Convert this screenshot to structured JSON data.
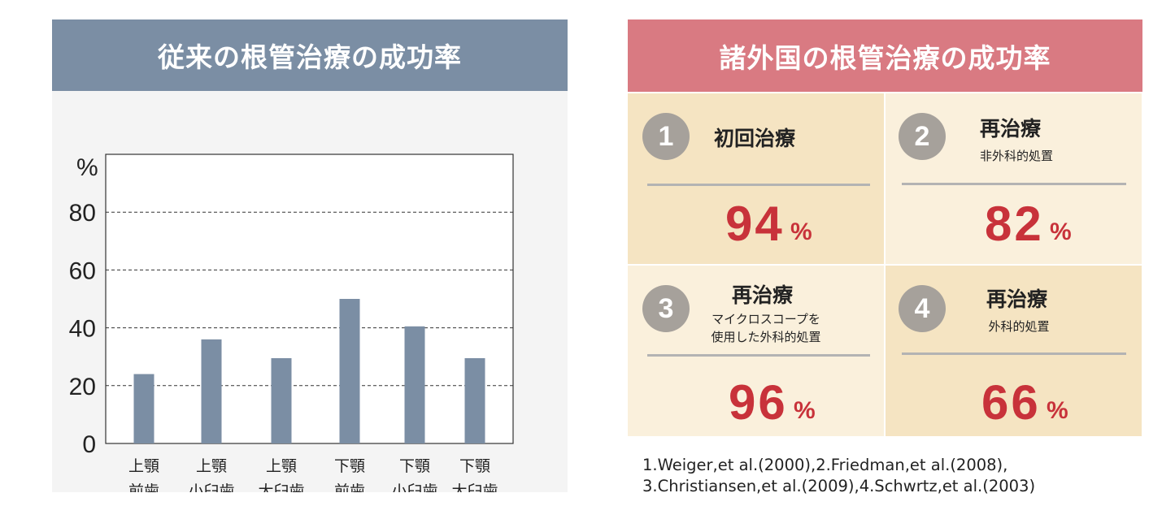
{
  "left": {
    "title": "従来の根管治療の成功率"
  },
  "chart_data": {
    "type": "bar",
    "y_unit_label": "%",
    "ylim": [
      0,
      100
    ],
    "y_ticks": [
      0,
      20,
      40,
      60,
      80
    ],
    "grid": "dashed horizontal at 20, 40, 60, 80",
    "categories": [
      [
        "上顎",
        "前歯"
      ],
      [
        "上顎",
        "小臼歯"
      ],
      [
        "上顎",
        "大臼歯"
      ],
      [
        "下顎",
        "前歯"
      ],
      [
        "下顎",
        "小臼歯"
      ],
      [
        "下顎",
        "大臼歯"
      ]
    ],
    "values": [
      24,
      36,
      29.5,
      50,
      40.5,
      29.5
    ],
    "bar_color": "#7b8ea4"
  },
  "right": {
    "title": "諸外国の根管治療の成功率",
    "cards": [
      {
        "num": "1",
        "title": "初回治療",
        "sub": [],
        "value": "94",
        "unit": "%",
        "bg": "#f5e4c2"
      },
      {
        "num": "2",
        "title": "再治療",
        "sub": [
          "非外科的処置"
        ],
        "value": "82",
        "unit": "%",
        "bg": "#faf0dc"
      },
      {
        "num": "3",
        "title": "再治療",
        "sub": [
          "マイクロスコープを",
          "使用した外科的処置"
        ],
        "value": "96",
        "unit": "%",
        "bg": "#faf0dc"
      },
      {
        "num": "4",
        "title": "再治療",
        "sub": [
          "外科的処置"
        ],
        "value": "66",
        "unit": "%",
        "bg": "#f5e4c2"
      }
    ],
    "references": [
      "1.Weiger,et al.(2000),2.Friedman,et al.(2008),",
      "3.Christiansen,et al.(2009),4.Schwrtz,et al.(2003)"
    ]
  },
  "colors": {
    "left_header": "#7b8ea4",
    "right_header": "#d97a82",
    "accent_value": "#c8323a",
    "circle": "#a6a19b"
  }
}
